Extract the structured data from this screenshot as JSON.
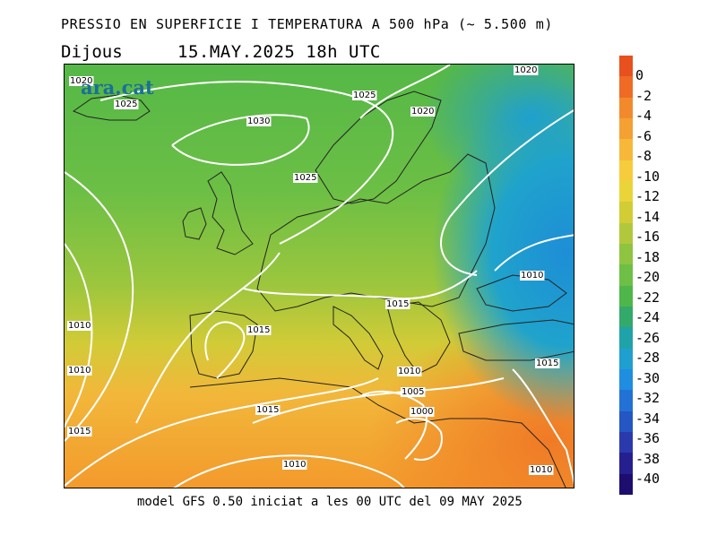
{
  "header": {
    "title": "PRESSIO EN SUPERFICIE I TEMPERATURA A 500 hPa (~ 5.500 m)",
    "day": "Dijous",
    "valid_time": "15.MAY.2025 18h UTC"
  },
  "map": {
    "logo_text": "ara.cat",
    "isobar_labels": [
      "1020",
      "1025",
      "1025",
      "1020",
      "1030",
      "1025",
      "1015",
      "1010",
      "1010",
      "1015",
      "1010",
      "1005",
      "1000",
      "1015",
      "1015",
      "1010",
      "1010",
      "1010",
      "1015",
      "1020",
      "1020"
    ]
  },
  "legend": {
    "labels": [
      "0",
      "-2",
      "-4",
      "-6",
      "-8",
      "-10",
      "-12",
      "-14",
      "-16",
      "-18",
      "-20",
      "-22",
      "-24",
      "-26",
      "-28",
      "-30",
      "-32",
      "-34",
      "-36",
      "-38",
      "-40"
    ],
    "colors": [
      "#e8501e",
      "#ef6a24",
      "#f28a2c",
      "#f5a032",
      "#f7b83a",
      "#f6cc3c",
      "#e9d53a",
      "#d2cc35",
      "#b2c83c",
      "#8ec43f",
      "#6dbf45",
      "#4fb64b",
      "#33a96a",
      "#1fa3a8",
      "#1f9fcf",
      "#1f8ee0",
      "#2272d6",
      "#2456c4",
      "#2a3aad",
      "#251f8f",
      "#1c0d6e"
    ]
  },
  "footer": {
    "text": "model GFS 0.50 iniciat a les 00 UTC del 09 MAY 2025"
  }
}
